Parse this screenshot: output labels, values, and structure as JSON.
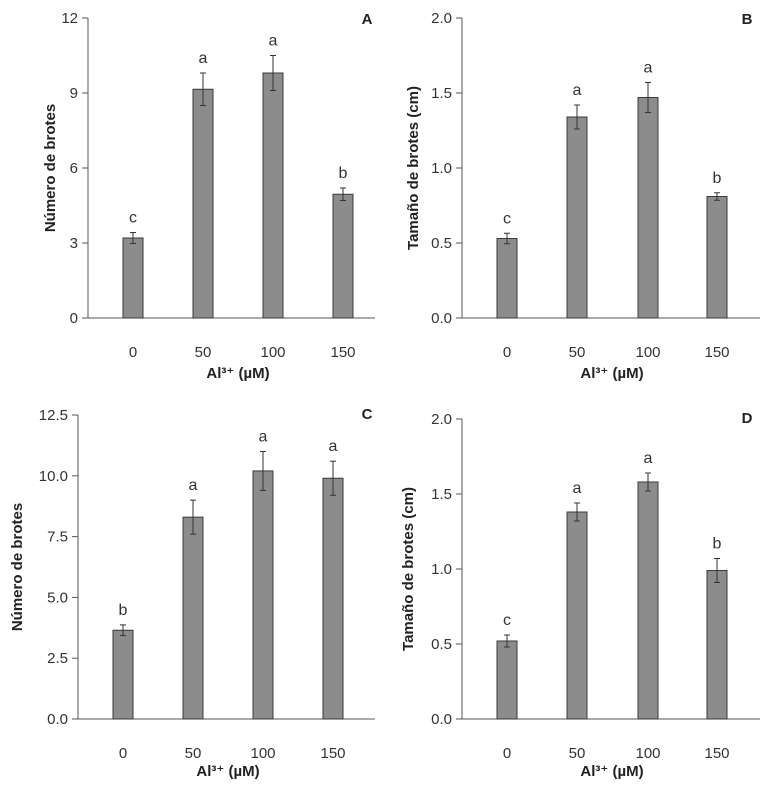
{
  "chart_data": [
    {
      "type": "bar",
      "panel": "A",
      "categories": [
        "0",
        "50",
        "100",
        "150"
      ],
      "values": [
        3.2,
        9.15,
        9.8,
        4.95
      ],
      "errors": [
        0.22,
        0.65,
        0.7,
        0.25
      ],
      "significance": [
        "c",
        "a",
        "a",
        "b"
      ],
      "ylabel": "Número de brotes",
      "xlabel": "Al³⁺ (µM)",
      "ylim": [
        0,
        12
      ],
      "yticks": [
        0,
        3,
        6,
        9,
        12
      ],
      "ytick_labels": [
        "0",
        "3",
        "6",
        "9",
        "12"
      ]
    },
    {
      "type": "bar",
      "panel": "B",
      "categories": [
        "0",
        "50",
        "100",
        "150"
      ],
      "values": [
        0.53,
        1.34,
        1.47,
        0.81
      ],
      "errors": [
        0.035,
        0.08,
        0.1,
        0.025
      ],
      "significance": [
        "c",
        "a",
        "a",
        "b"
      ],
      "ylabel": "Tamaño de brotes (cm)",
      "xlabel": "Al³⁺ (µM)",
      "ylim": [
        0,
        2
      ],
      "yticks": [
        0,
        0.5,
        1,
        1.5,
        2
      ],
      "ytick_labels": [
        "0.0",
        "0.5",
        "1.0",
        "1.5",
        "2.0"
      ]
    },
    {
      "type": "bar",
      "panel": "C",
      "categories": [
        "0",
        "50",
        "100",
        "150"
      ],
      "values": [
        3.65,
        8.3,
        10.2,
        9.9
      ],
      "errors": [
        0.22,
        0.7,
        0.8,
        0.7
      ],
      "significance": [
        "b",
        "a",
        "a",
        "a"
      ],
      "ylabel": "Número de brotes",
      "xlabel": "Al³⁺ (µM)",
      "ylim": [
        0,
        12.5
      ],
      "yticks": [
        0,
        2.5,
        5,
        7.5,
        10,
        12.5
      ],
      "ytick_labels": [
        "0.0",
        "2.5",
        "5.0",
        "7.5",
        "10.0",
        "12.5"
      ]
    },
    {
      "type": "bar",
      "panel": "D",
      "categories": [
        "0",
        "50",
        "100",
        "150"
      ],
      "values": [
        0.52,
        1.38,
        1.58,
        0.99
      ],
      "errors": [
        0.04,
        0.06,
        0.06,
        0.08
      ],
      "significance": [
        "c",
        "a",
        "a",
        "b"
      ],
      "ylabel": "Tamaño de brotes (cm)",
      "xlabel": "Al³⁺ (µM)",
      "ylim": [
        0,
        2
      ],
      "yticks": [
        0,
        0.5,
        1,
        1.5,
        2
      ],
      "ytick_labels": [
        "0.0",
        "0.5",
        "1.0",
        "1.5",
        "2.0"
      ]
    }
  ],
  "colors": {
    "bar_fill": "#8c8c8c",
    "bar_edge": "#3a3a3a"
  }
}
